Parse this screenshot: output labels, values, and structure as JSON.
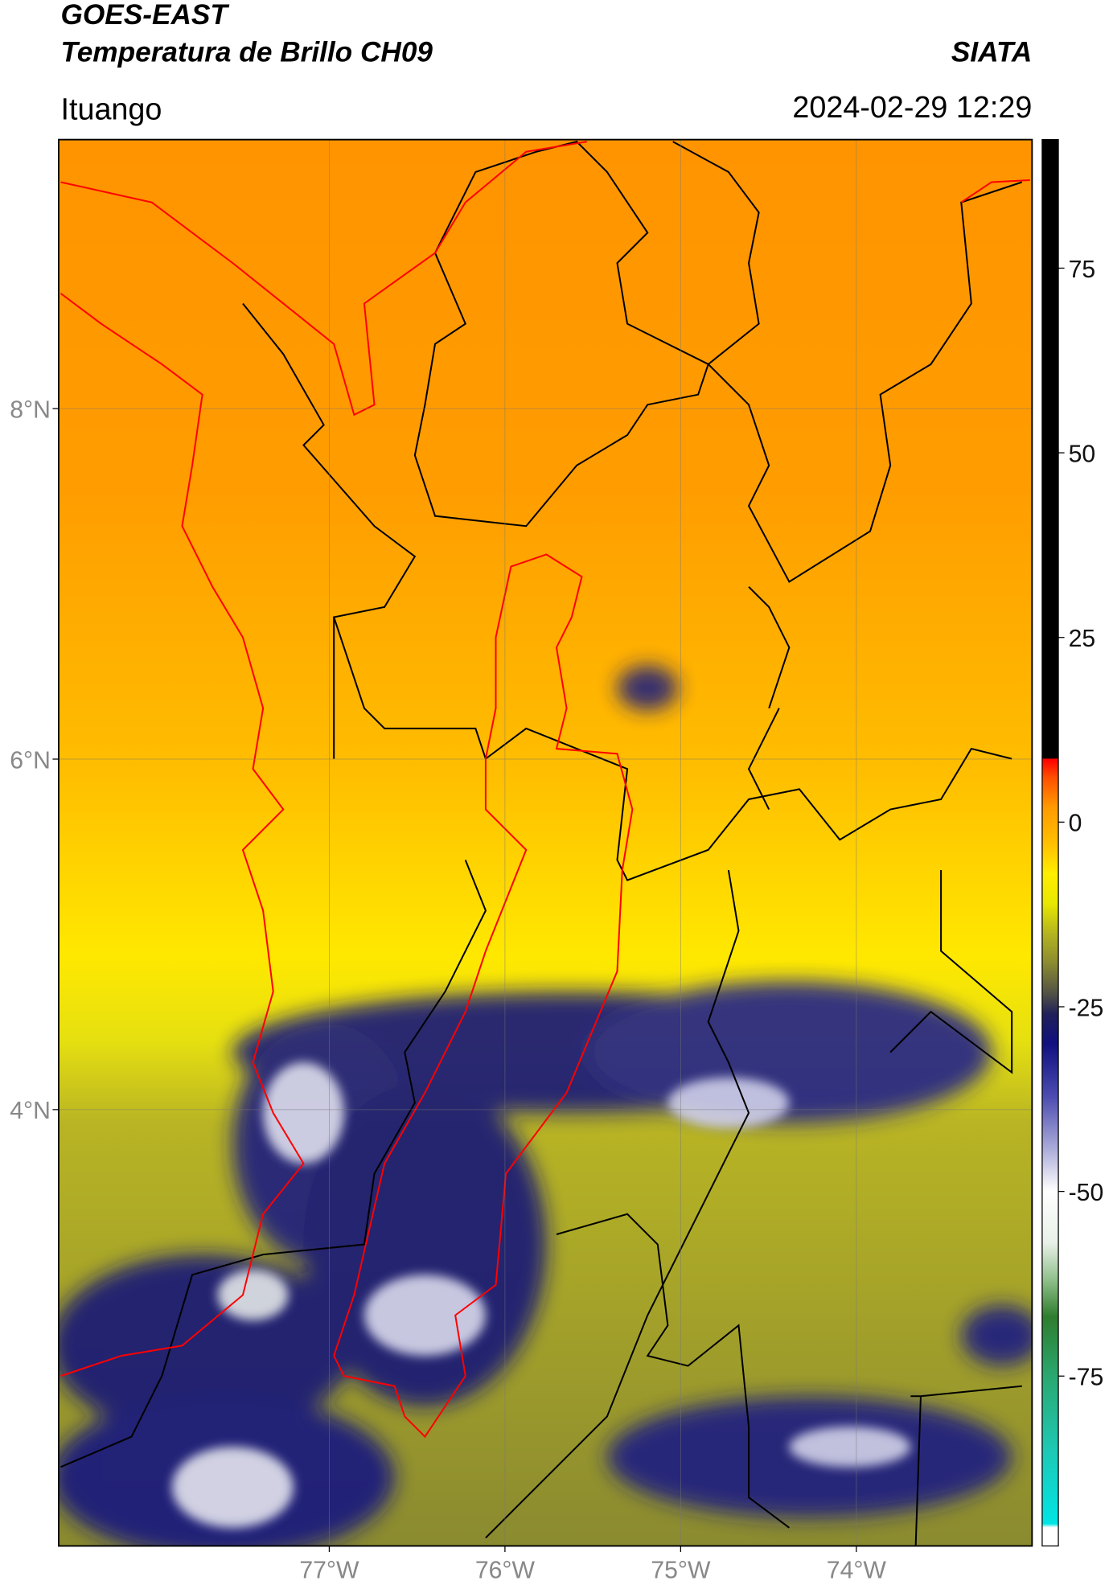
{
  "header": {
    "title": "GOES-EAST",
    "subtitle": "Temperatura de Brillo CH09",
    "brand": "SIATA",
    "region": "Ituango",
    "datetime": "2024-02-29 12:29"
  },
  "map": {
    "lonlim": [
      -78.54,
      -73.0
    ],
    "latlim": [
      1.51,
      9.535
    ],
    "lat_ticks": [
      {
        "value": 8,
        "label": "8°N"
      },
      {
        "value": 6,
        "label": "6°N"
      },
      {
        "value": 4,
        "label": "4°N"
      }
    ],
    "lon_ticks": [
      {
        "value": -77,
        "label": "77°W"
      },
      {
        "value": -76,
        "label": "76°W"
      },
      {
        "value": -75,
        "label": "75°W"
      },
      {
        "value": -74,
        "label": "74°W"
      }
    ],
    "grid": true
  },
  "colorbar": {
    "lim": [
      -98,
      92.4
    ],
    "ticks": [
      75,
      50,
      25,
      0,
      -25,
      -50,
      -75
    ],
    "stops": [
      [
        -98,
        "#ffffff"
      ],
      [
        -95.5,
        "#ffffff"
      ],
      [
        -95,
        "#00e5e5"
      ],
      [
        -85,
        "#1ec8b4"
      ],
      [
        -75,
        "#2aa870"
      ],
      [
        -67,
        "#2e7d2e"
      ],
      [
        -62,
        "#8fc08a"
      ],
      [
        -57,
        "#e8f0e8"
      ],
      [
        -50,
        "#ffffff"
      ],
      [
        -44,
        "#a8a8d8"
      ],
      [
        -37,
        "#4a4ab0"
      ],
      [
        -30,
        "#101080"
      ],
      [
        -26,
        "#20205a"
      ],
      [
        -23,
        "#555544"
      ],
      [
        -19,
        "#8c8c30"
      ],
      [
        -15,
        "#b5b520"
      ],
      [
        -11,
        "#e8e800"
      ],
      [
        -7,
        "#ffee00"
      ],
      [
        -3,
        "#ffc000"
      ],
      [
        2,
        "#ff9a00"
      ],
      [
        6,
        "#ff5000"
      ],
      [
        8.5,
        "#ff0000"
      ],
      [
        8.7,
        "#000000"
      ],
      [
        92.4,
        "#000000"
      ]
    ]
  }
}
